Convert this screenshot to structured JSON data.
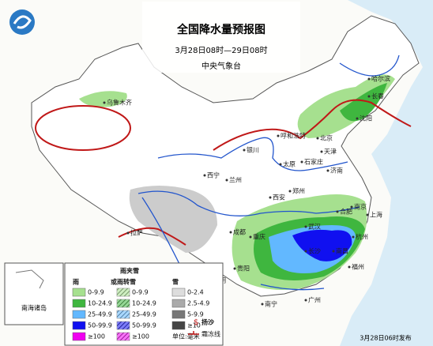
{
  "header": {
    "title": "全国降水量预报图",
    "period": "3月28日08时—29日08时",
    "issuer": "中央气象台"
  },
  "cities": [
    "乌鲁木齐",
    "哈尔滨",
    "长春",
    "沈阳",
    "呼和浩特",
    "北京",
    "天津",
    "石家庄",
    "太原",
    "济南",
    "银川",
    "西宁",
    "兰州",
    "郑州",
    "西安",
    "合肥",
    "南京",
    "上海",
    "武汉",
    "杭州",
    "成都",
    "重庆",
    "长沙",
    "南昌",
    "福州",
    "贵阳",
    "昆明",
    "南宁",
    "广州",
    "拉萨"
  ],
  "legend": {
    "rain": {
      "title": [
        "雨"
      ],
      "items": [
        {
          "label": "0-9.9",
          "color": "#a6e08f"
        },
        {
          "label": "10-24.9",
          "color": "#3fb63f"
        },
        {
          "label": "25-49.9",
          "color": "#62b8ff"
        },
        {
          "label": "50-99.9",
          "color": "#1010f0"
        },
        {
          "label": "≥100",
          "color": "#f000f0"
        }
      ]
    },
    "sleet": {
      "title": [
        "雨夹雪",
        "或雨转雪"
      ],
      "items": [
        {
          "label": "0-9.9",
          "color": "#a6e08f"
        },
        {
          "label": "10-24.9",
          "color": "#3fb63f"
        },
        {
          "label": "25-49.9",
          "color": "#62b8ff"
        },
        {
          "label": "50-99.9",
          "color": "#1010f0"
        },
        {
          "label": "≥100",
          "color": "#f000f0"
        }
      ]
    },
    "snow": {
      "title": [
        "雪"
      ],
      "items": [
        {
          "label": "0-2.4",
          "color": "#dddddd"
        },
        {
          "label": "2.5-4.9",
          "color": "#aaaaaa"
        },
        {
          "label": "5-9.9",
          "color": "#777777"
        },
        {
          "label": "≥10",
          "color": "#444444"
        }
      ]
    },
    "unit": "单位:毫米",
    "sand": "扬沙",
    "frost": "霜冻线"
  },
  "inset": "南海诸岛",
  "footer": "3月28日06时发布"
}
